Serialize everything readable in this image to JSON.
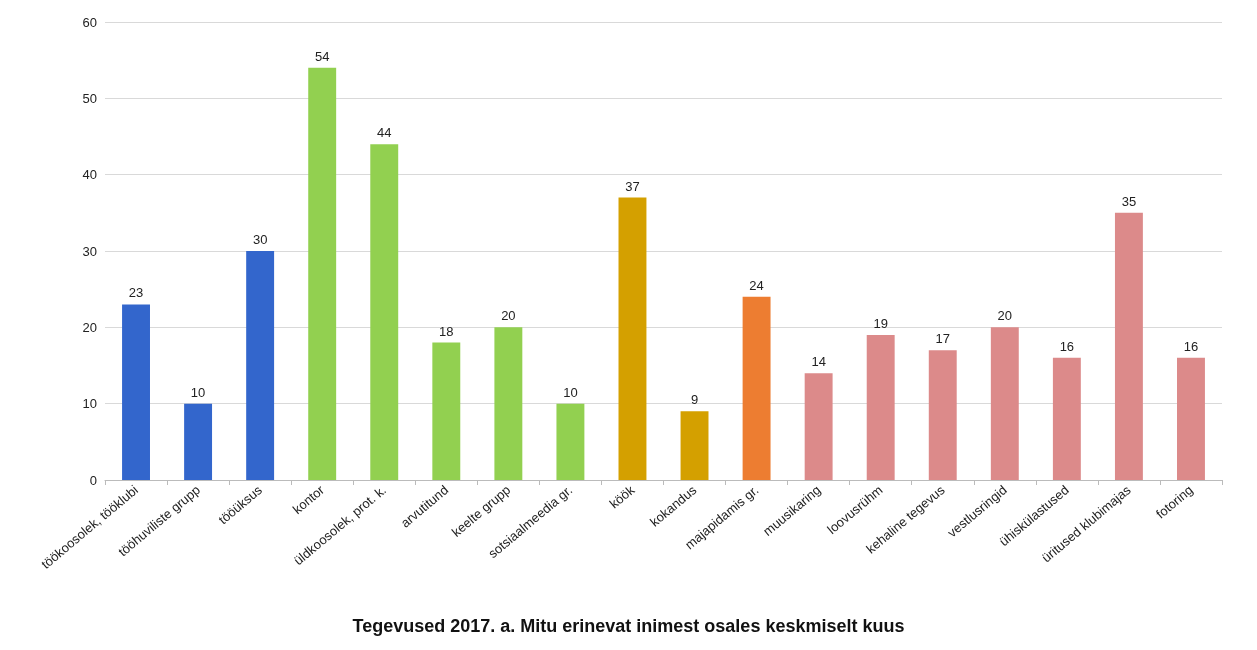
{
  "chart_data": {
    "type": "bar",
    "title": "Tegevused 2017. a. Mitu erinevat inimest osales keskmiselt kuus",
    "categories": [
      "töökoosolek, tööklubi",
      "tööhuviliste grupp",
      "tööüksus",
      "kontor",
      "üldkoosolek, prot. k.",
      "arvutitund",
      "keelte grupp",
      "sotsiaalmeedia gr.",
      "köök",
      "kokandus",
      "majapidamis gr.",
      "muusikaring",
      "loovusrühm",
      "kehaline tegevus",
      "vestlusringid",
      "ühiskülastused",
      "üritused klubimajas",
      "fotoring"
    ],
    "values": [
      23,
      10,
      30,
      54,
      44,
      18,
      20,
      10,
      37,
      9,
      24,
      14,
      19,
      17,
      20,
      16,
      35,
      16
    ],
    "colors": [
      "#3366cc",
      "#3366cc",
      "#3366cc",
      "#92d050",
      "#92d050",
      "#92d050",
      "#92d050",
      "#92d050",
      "#d4a000",
      "#d4a000",
      "#ed7d31",
      "#dc8a8a",
      "#dc8a8a",
      "#dc8a8a",
      "#dc8a8a",
      "#dc8a8a",
      "#dc8a8a",
      "#dc8a8a"
    ],
    "ylim": [
      0,
      60
    ],
    "yticks": [
      0,
      10,
      20,
      30,
      40,
      50,
      60
    ],
    "grid": "y",
    "data_labels": true
  }
}
